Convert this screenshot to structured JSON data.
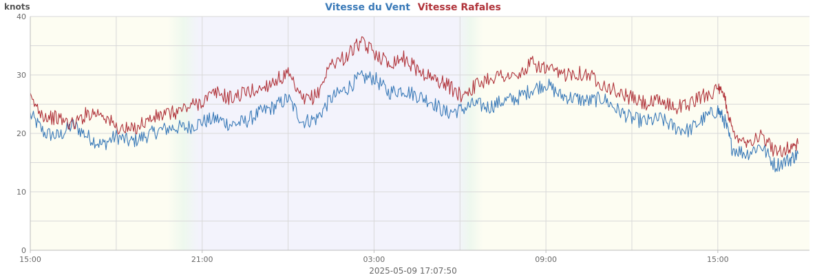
{
  "chart_data": {
    "type": "line",
    "title_parts": [
      {
        "text": "Vitesse du Vent",
        "color": "#3a7ab8"
      },
      {
        "text": "Vitesse Rafales",
        "color": "#b0333a"
      }
    ],
    "ylabel": "knots",
    "ylim": [
      0,
      40
    ],
    "yticks": [
      0,
      10,
      20,
      30,
      40
    ],
    "ygrid": [
      0,
      5,
      10,
      15,
      20,
      25,
      30,
      35,
      40
    ],
    "xlim_hours": [
      15,
      42.2
    ],
    "xticks": [
      {
        "at": 15,
        "label": "15:00"
      },
      {
        "at": 21,
        "label": "21:00"
      },
      {
        "at": 27,
        "label": "03:00"
      },
      {
        "at": 33,
        "label": "09:00"
      },
      {
        "at": 39,
        "label": "15:00"
      }
    ],
    "xgrid_hours": [
      15,
      18,
      21,
      24,
      27,
      30,
      33,
      36,
      39
    ],
    "footer": "2025-05-09 17:07:50",
    "background": {
      "day_color": "#fdfdf2",
      "night_color": "#f3f3fc",
      "transitions": [
        {
          "from": 19.8,
          "to": 20.9,
          "start": "day",
          "end": "night"
        },
        {
          "from": 29.9,
          "to": 30.8,
          "start": "night",
          "end": "day"
        }
      ]
    },
    "series": [
      {
        "name": "Vitesse du Vent",
        "color": "#3a7ab8",
        "x": [
          15.0,
          15.5,
          16.0,
          16.5,
          17.0,
          17.5,
          18.0,
          18.5,
          19.0,
          19.5,
          20.0,
          20.5,
          21.0,
          21.5,
          22.0,
          22.5,
          23.0,
          23.5,
          24.0,
          24.5,
          25.0,
          25.5,
          26.0,
          26.5,
          27.0,
          27.5,
          28.0,
          28.5,
          29.0,
          29.5,
          30.0,
          30.5,
          31.0,
          31.5,
          32.0,
          32.5,
          33.0,
          33.5,
          34.0,
          34.5,
          35.0,
          35.5,
          36.0,
          36.5,
          37.0,
          37.5,
          38.0,
          38.5,
          39.0,
          39.25,
          39.5,
          40.0,
          40.5,
          41.0,
          41.5,
          41.8
        ],
        "y": [
          23.2,
          20.0,
          19.5,
          21.5,
          19.5,
          18.0,
          19.5,
          18.5,
          19.5,
          20.5,
          21.0,
          21.0,
          22.0,
          22.5,
          21.5,
          22.0,
          23.5,
          24.5,
          26.0,
          22.0,
          22.5,
          26.0,
          27.5,
          29.5,
          29.5,
          27.0,
          27.5,
          26.5,
          25.5,
          23.5,
          24.0,
          25.0,
          24.5,
          25.5,
          26.0,
          27.5,
          28.5,
          26.5,
          26.0,
          25.5,
          26.0,
          24.0,
          22.5,
          22.0,
          22.5,
          21.0,
          20.5,
          22.5,
          24.0,
          22.0,
          17.5,
          16.5,
          18.0,
          14.5,
          15.5,
          16.5
        ]
      },
      {
        "name": "Vitesse Rafales",
        "color": "#b0333a",
        "x": [
          15.0,
          15.5,
          16.0,
          16.5,
          17.0,
          17.5,
          18.0,
          18.5,
          19.0,
          19.5,
          20.0,
          20.5,
          21.0,
          21.5,
          22.0,
          22.5,
          23.0,
          23.5,
          24.0,
          24.5,
          25.0,
          25.5,
          26.0,
          26.5,
          27.0,
          27.5,
          28.0,
          28.5,
          29.0,
          29.5,
          30.0,
          30.5,
          31.0,
          31.5,
          32.0,
          32.5,
          33.0,
          33.5,
          34.0,
          34.5,
          35.0,
          35.5,
          36.0,
          36.5,
          37.0,
          37.5,
          38.0,
          38.5,
          39.0,
          39.25,
          39.5,
          40.0,
          40.5,
          41.0,
          41.5,
          41.8
        ],
        "y": [
          25.8,
          23.0,
          22.5,
          21.5,
          23.5,
          23.5,
          21.0,
          20.5,
          22.0,
          23.0,
          23.5,
          24.5,
          25.5,
          27.0,
          26.0,
          27.0,
          27.5,
          29.0,
          30.0,
          25.5,
          26.5,
          32.0,
          33.0,
          35.5,
          34.0,
          32.0,
          33.0,
          31.0,
          29.5,
          28.5,
          26.5,
          28.0,
          29.5,
          30.0,
          29.5,
          32.0,
          31.0,
          30.0,
          30.5,
          30.0,
          28.5,
          27.0,
          26.0,
          25.0,
          25.5,
          24.5,
          25.0,
          26.5,
          27.5,
          26.0,
          20.5,
          18.5,
          19.5,
          17.0,
          17.5,
          18.2
        ]
      }
    ]
  }
}
